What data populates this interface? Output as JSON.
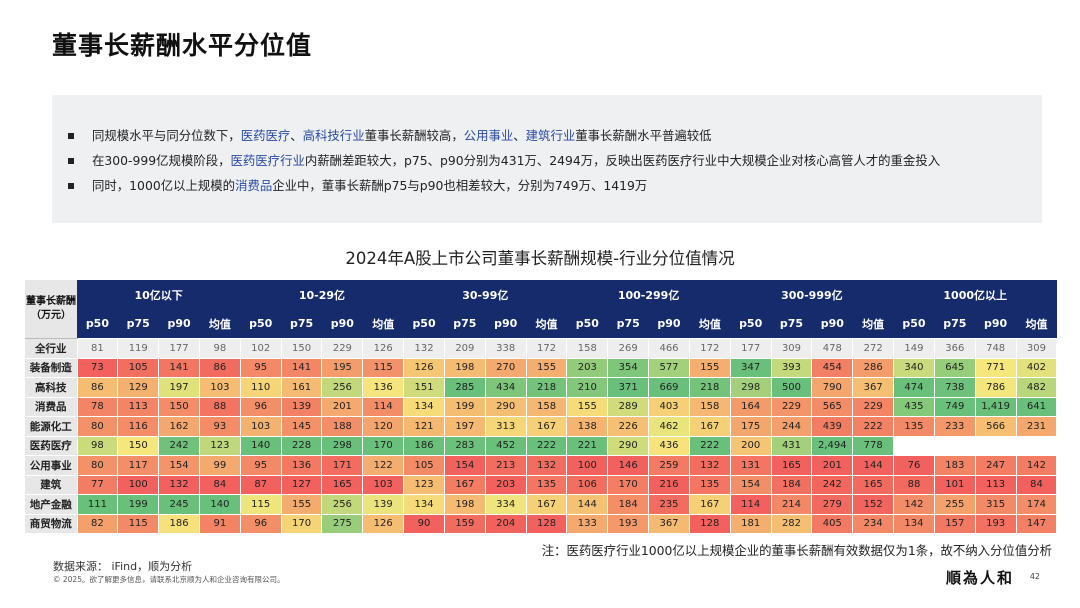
{
  "title": "董事长薪酬水平分位值",
  "bullets": [
    [
      {
        "t": "同规模水平与同分位数下，",
        "h": false
      },
      {
        "t": "医药医疗",
        "h": true
      },
      {
        "t": "、",
        "h": false
      },
      {
        "t": "高科技行业",
        "h": true
      },
      {
        "t": "董事长薪酬较高，",
        "h": false
      },
      {
        "t": "公用事业",
        "h": true
      },
      {
        "t": "、",
        "h": false
      },
      {
        "t": "建筑行业",
        "h": true
      },
      {
        "t": "董事长薪酬水平普遍较低",
        "h": false
      }
    ],
    [
      {
        "t": "在300-999亿规模阶段，",
        "h": false
      },
      {
        "t": "医药医疗行业",
        "h": true
      },
      {
        "t": "内薪酬差距较大，p75、p90分别为431万、2494万，反映出医药医疗行业中大规模企业对核心高管人才的重金投入",
        "h": false
      }
    ],
    [
      {
        "t": "同时，1000亿以上规模的",
        "h": false
      },
      {
        "t": "消费品",
        "h": true
      },
      {
        "t": "企业中，董事长薪酬p75与p90也相差较大，分别为749万、1419万",
        "h": false
      }
    ]
  ],
  "table": {
    "title": "2024年A股上市公司董事长薪酬规模-行业分位值情况",
    "corner": "董事长薪酬（万元）",
    "groups": [
      "10亿以下",
      "10-29亿",
      "30-99亿",
      "100-299亿",
      "300-999亿",
      "1000亿以上"
    ],
    "subheaders": [
      "p50",
      "p75",
      "p90",
      "均值"
    ],
    "rows": [
      {
        "label": "全行业",
        "values": [
          "81",
          "119",
          "177",
          "98",
          "102",
          "150",
          "229",
          "126",
          "132",
          "209",
          "338",
          "172",
          "158",
          "269",
          "466",
          "172",
          "177",
          "309",
          "478",
          "272",
          "149",
          "366",
          "748",
          "309"
        ]
      },
      {
        "label": "装备制造",
        "values": [
          "73",
          "105",
          "141",
          "86",
          "95",
          "141",
          "195",
          "115",
          "126",
          "198",
          "270",
          "155",
          "203",
          "354",
          "577",
          "155",
          "347",
          "393",
          "454",
          "286",
          "340",
          "645",
          "771",
          "402"
        ]
      },
      {
        "label": "高科技",
        "values": [
          "86",
          "129",
          "197",
          "103",
          "110",
          "161",
          "256",
          "136",
          "151",
          "285",
          "434",
          "218",
          "210",
          "371",
          "669",
          "218",
          "298",
          "500",
          "790",
          "367",
          "474",
          "738",
          "786",
          "482"
        ]
      },
      {
        "label": "消费品",
        "values": [
          "78",
          "113",
          "150",
          "88",
          "96",
          "139",
          "201",
          "114",
          "134",
          "199",
          "290",
          "158",
          "155",
          "289",
          "403",
          "158",
          "164",
          "229",
          "565",
          "229",
          "435",
          "749",
          "1,419",
          "641"
        ]
      },
      {
        "label": "能源化工",
        "values": [
          "80",
          "116",
          "162",
          "93",
          "103",
          "145",
          "188",
          "120",
          "121",
          "197",
          "313",
          "167",
          "138",
          "226",
          "462",
          "167",
          "175",
          "244",
          "439",
          "222",
          "135",
          "233",
          "566",
          "231"
        ]
      },
      {
        "label": "医药医疗",
        "values": [
          "98",
          "150",
          "242",
          "123",
          "140",
          "228",
          "298",
          "170",
          "186",
          "283",
          "452",
          "222",
          "221",
          "290",
          "436",
          "222",
          "200",
          "431",
          "2,494",
          "778",
          "",
          "",
          "",
          ""
        ]
      },
      {
        "label": "公用事业",
        "values": [
          "80",
          "117",
          "154",
          "99",
          "95",
          "136",
          "171",
          "122",
          "105",
          "154",
          "213",
          "132",
          "100",
          "146",
          "259",
          "132",
          "131",
          "165",
          "201",
          "144",
          "76",
          "183",
          "247",
          "142"
        ]
      },
      {
        "label": "建筑",
        "values": [
          "77",
          "100",
          "132",
          "84",
          "87",
          "127",
          "165",
          "103",
          "123",
          "167",
          "203",
          "135",
          "106",
          "170",
          "216",
          "135",
          "154",
          "184",
          "242",
          "165",
          "88",
          "101",
          "113",
          "84"
        ]
      },
      {
        "label": "地产金融",
        "values": [
          "111",
          "199",
          "245",
          "140",
          "115",
          "155",
          "256",
          "139",
          "134",
          "198",
          "334",
          "167",
          "144",
          "184",
          "235",
          "167",
          "114",
          "214",
          "279",
          "152",
          "142",
          "255",
          "315",
          "174"
        ]
      },
      {
        "label": "商贸物流",
        "values": [
          "82",
          "115",
          "186",
          "91",
          "96",
          "170",
          "275",
          "126",
          "90",
          "159",
          "204",
          "128",
          "133",
          "193",
          "367",
          "128",
          "181",
          "282",
          "405",
          "234",
          "134",
          "157",
          "193",
          "147"
        ]
      }
    ]
  },
  "colors": {
    "header": "#152b6c",
    "highlight_text": "#2a4aa3",
    "scale_low": "#f2615d",
    "scale_mid": "#f6e77c",
    "scale_high": "#68c07a"
  },
  "note": "注：医药医疗行业1000亿以上规模企业的董事长薪酬有效数据仅为1条，故不纳入分位值分析",
  "source": "数据来源： iFind，顺为分析",
  "copyright": "© 2025。欲了解更多信息，请联系北京顺为人和企业咨询有限公司。",
  "brand": "順為人和",
  "page_number": "42"
}
